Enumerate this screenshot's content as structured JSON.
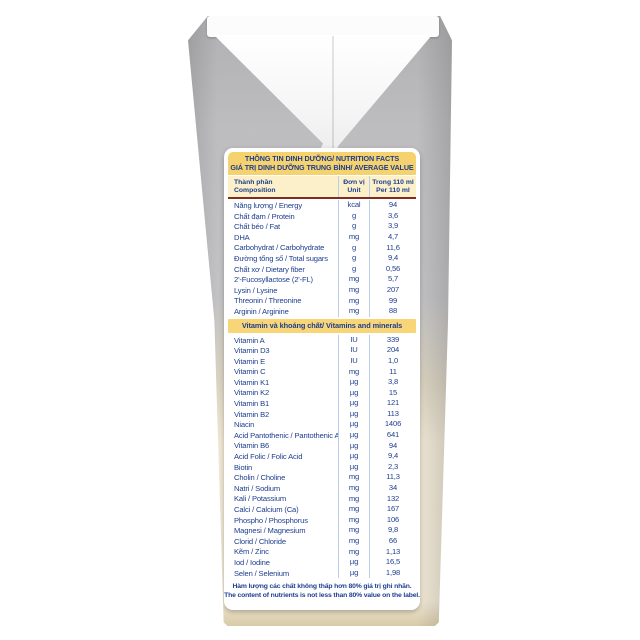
{
  "panel": {
    "title_line1": "THÔNG TIN DINH DƯỠNG/ NUTRITION FACTS",
    "title_line2": "GIÁ TRỊ DINH DƯỠNG TRUNG BÌNH/ AVERAGE VALUE",
    "footnote_vi": "Hàm lượng các chất không thấp hơn 80% giá trị ghi nhãn.",
    "footnote_en": "The content of nutrients is not less than 80% value on the label."
  },
  "table": {
    "columns": {
      "composition_vi": "Thành phần",
      "composition_en": "Composition",
      "unit_vi": "Đơn vị",
      "unit_en": "Unit",
      "amount_vi": "Trong 110 ml",
      "amount_en": "Per 110 ml"
    },
    "sections": [
      {
        "name": "",
        "rows": [
          {
            "label": "Năng lượng / Energy",
            "unit": "kcal",
            "value": "94"
          },
          {
            "label": "Chất đạm / Protein",
            "unit": "g",
            "value": "3,6"
          },
          {
            "label": "Chất béo / Fat",
            "unit": "g",
            "value": "3,9"
          },
          {
            "label": "DHA",
            "unit": "mg",
            "value": "4,7"
          },
          {
            "label": "Carbohydrat / Carbohydrate",
            "unit": "g",
            "value": "11,6"
          },
          {
            "label": "Đường tổng số / Total sugars",
            "unit": "g",
            "value": "9,4"
          },
          {
            "label": "Chất xơ / Dietary fiber",
            "unit": "g",
            "value": "0,56"
          },
          {
            "label": "2'-Fucosyllactose (2'-FL)",
            "unit": "mg",
            "value": "5,7"
          },
          {
            "label": "Lysin / Lysine",
            "unit": "mg",
            "value": "207"
          },
          {
            "label": "Threonin / Threonine",
            "unit": "mg",
            "value": "99"
          },
          {
            "label": "Arginin / Arginine",
            "unit": "mg",
            "value": "88"
          }
        ]
      },
      {
        "name": "Vitamin và khoáng chất/ Vitamins and minerals",
        "rows": [
          {
            "label": "Vitamin A",
            "unit": "IU",
            "value": "339"
          },
          {
            "label": "Vitamin D3",
            "unit": "IU",
            "value": "204"
          },
          {
            "label": "Vitamin E",
            "unit": "IU",
            "value": "1,0"
          },
          {
            "label": "Vitamin C",
            "unit": "mg",
            "value": "11"
          },
          {
            "label": "Vitamin K1",
            "unit": "µg",
            "value": "3,8"
          },
          {
            "label": "Vitamin K2",
            "unit": "µg",
            "value": "15"
          },
          {
            "label": "Vitamin B1",
            "unit": "µg",
            "value": "121"
          },
          {
            "label": "Vitamin B2",
            "unit": "µg",
            "value": "113"
          },
          {
            "label": "Niacin",
            "unit": "µg",
            "value": "1406"
          },
          {
            "label": "Acid Pantothenic / Pantothenic Acid",
            "unit": "µg",
            "value": "641"
          },
          {
            "label": "Vitamin B6",
            "unit": "µg",
            "value": "94"
          },
          {
            "label": "Acid Folic / Folic Acid",
            "unit": "µg",
            "value": "9,4"
          },
          {
            "label": "Biotin",
            "unit": "µg",
            "value": "2,3"
          },
          {
            "label": "Cholin / Choline",
            "unit": "mg",
            "value": "11,3"
          },
          {
            "label": "Natri / Sodium",
            "unit": "mg",
            "value": "34"
          },
          {
            "label": "Kali / Potassium",
            "unit": "mg",
            "value": "132"
          },
          {
            "label": "Calci / Calcium (Ca)",
            "unit": "mg",
            "value": "167"
          },
          {
            "label": "Phospho / Phosphorus",
            "unit": "mg",
            "value": "106"
          },
          {
            "label": "Magnesi / Magnesium",
            "unit": "mg",
            "value": "9,8"
          },
          {
            "label": "Clorid / Chloride",
            "unit": "mg",
            "value": "66"
          },
          {
            "label": "Kẽm / Zinc",
            "unit": "mg",
            "value": "1,13"
          },
          {
            "label": "Iod / Iodine",
            "unit": "µg",
            "value": "16,5"
          },
          {
            "label": "Selen / Selenium",
            "unit": "µg",
            "value": "1,98"
          }
        ]
      }
    ]
  },
  "colors": {
    "header_gold": "#f6d26e",
    "header_cream": "#fbf0c9",
    "text_navy": "#1d3e8f",
    "divider_blue": "#b9cfe9",
    "rule_maroon": "#7e2d22",
    "carton_grey": "#bdbdbf",
    "carton_cream": "#efe7d4"
  }
}
